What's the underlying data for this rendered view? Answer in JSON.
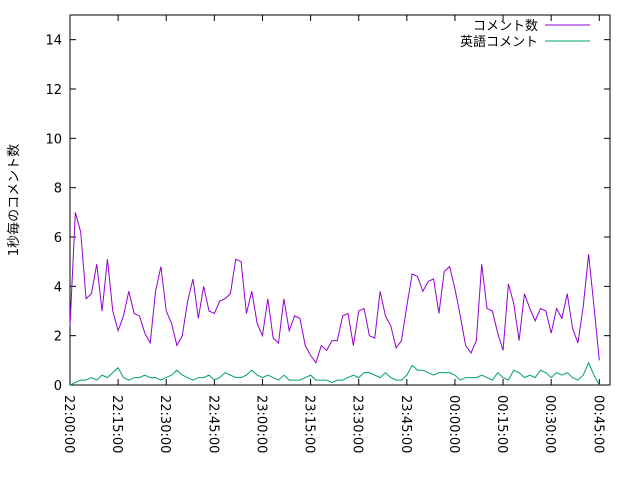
{
  "chart_data": {
    "type": "line",
    "ylabel": "1秒毎のコメント数",
    "x": [
      0,
      100,
      200,
      300,
      400,
      500,
      600,
      700,
      800,
      900,
      1000,
      1100,
      1200,
      1300,
      1400,
      1500,
      1600,
      1700,
      1800,
      1900,
      2000,
      2100,
      2200,
      2300,
      2400,
      2500,
      2600,
      2700,
      2800,
      2900,
      3000,
      3100,
      3200,
      3300,
      3400,
      3500,
      3600,
      3700,
      3800,
      3900,
      4000,
      4100,
      4200,
      4300,
      4400,
      4500,
      4600,
      4700,
      4800,
      4900,
      5000,
      5100,
      5200,
      5300,
      5400,
      5500,
      5600,
      5700,
      5800,
      5900,
      6000,
      6100,
      6200,
      6300,
      6400,
      6500,
      6600,
      6700,
      6800,
      6900,
      7000,
      7100,
      7200,
      7300,
      7400,
      7500,
      7600,
      7700,
      7800,
      7900,
      8000,
      8100,
      8200,
      8300,
      8400,
      8500,
      8600,
      8700,
      8800,
      8900,
      9000,
      9100,
      9200,
      9300,
      9400,
      9500,
      9600,
      9700,
      9800,
      9900
    ],
    "series": [
      {
        "name": "コメント数",
        "color": "#9400d3",
        "values": [
          2.4,
          7.0,
          6.2,
          3.5,
          3.7,
          4.9,
          3.0,
          5.1,
          3.0,
          2.2,
          2.8,
          3.8,
          2.9,
          2.8,
          2.1,
          1.7,
          3.8,
          4.8,
          3.0,
          2.5,
          1.6,
          2.0,
          3.4,
          4.3,
          2.7,
          4.0,
          3.0,
          2.9,
          3.4,
          3.5,
          3.7,
          5.1,
          5.0,
          2.9,
          3.8,
          2.5,
          2.0,
          3.5,
          1.9,
          1.7,
          3.5,
          2.2,
          2.8,
          2.7,
          1.6,
          1.2,
          0.9,
          1.6,
          1.4,
          1.8,
          1.8,
          2.8,
          2.9,
          1.6,
          3.0,
          3.1,
          2.0,
          1.9,
          3.8,
          2.8,
          2.4,
          1.5,
          1.8,
          3.2,
          4.5,
          4.4,
          3.8,
          4.2,
          4.3,
          2.9,
          4.6,
          4.8,
          3.9,
          2.8,
          1.6,
          1.3,
          1.8,
          4.9,
          3.1,
          3.0,
          2.1,
          1.4,
          4.1,
          3.3,
          1.8,
          3.7,
          3.1,
          2.6,
          3.1,
          3.0,
          2.1,
          3.1,
          2.7,
          3.7,
          2.3,
          1.7,
          3.2,
          5.3,
          3.2,
          1.0
        ]
      },
      {
        "name": "英語コメント",
        "color": "#009e73",
        "values": [
          0.0,
          0.1,
          0.2,
          0.2,
          0.3,
          0.2,
          0.4,
          0.3,
          0.5,
          0.7,
          0.3,
          0.2,
          0.3,
          0.3,
          0.4,
          0.3,
          0.3,
          0.2,
          0.3,
          0.4,
          0.6,
          0.4,
          0.3,
          0.2,
          0.3,
          0.3,
          0.4,
          0.2,
          0.3,
          0.5,
          0.4,
          0.3,
          0.3,
          0.4,
          0.6,
          0.4,
          0.3,
          0.4,
          0.3,
          0.2,
          0.4,
          0.2,
          0.2,
          0.2,
          0.3,
          0.4,
          0.2,
          0.2,
          0.2,
          0.1,
          0.2,
          0.2,
          0.3,
          0.4,
          0.3,
          0.5,
          0.5,
          0.4,
          0.3,
          0.5,
          0.3,
          0.2,
          0.2,
          0.4,
          0.8,
          0.6,
          0.6,
          0.5,
          0.4,
          0.5,
          0.5,
          0.5,
          0.4,
          0.2,
          0.3,
          0.3,
          0.3,
          0.4,
          0.3,
          0.2,
          0.5,
          0.3,
          0.2,
          0.6,
          0.5,
          0.3,
          0.4,
          0.3,
          0.6,
          0.5,
          0.3,
          0.5,
          0.4,
          0.5,
          0.3,
          0.2,
          0.4,
          0.9,
          0.4,
          0.0
        ]
      }
    ],
    "xlim": [
      0,
      10100
    ],
    "xticks": [
      {
        "value": 0,
        "label": "22:00:00"
      },
      {
        "value": 900,
        "label": "22:15:00"
      },
      {
        "value": 1800,
        "label": "22:30:00"
      },
      {
        "value": 2700,
        "label": "22:45:00"
      },
      {
        "value": 3600,
        "label": "23:00:00"
      },
      {
        "value": 4500,
        "label": "23:15:00"
      },
      {
        "value": 5400,
        "label": "23:30:00"
      },
      {
        "value": 6300,
        "label": "23:45:00"
      },
      {
        "value": 7200,
        "label": "00:00:00"
      },
      {
        "value": 8100,
        "label": "00:15:00"
      },
      {
        "value": 9000,
        "label": "00:30:00"
      },
      {
        "value": 9900,
        "label": "00:45:00"
      }
    ],
    "ylim": [
      0,
      15
    ],
    "yticks": [
      0,
      2,
      4,
      6,
      8,
      10,
      12,
      14
    ],
    "legend": "top-right"
  }
}
